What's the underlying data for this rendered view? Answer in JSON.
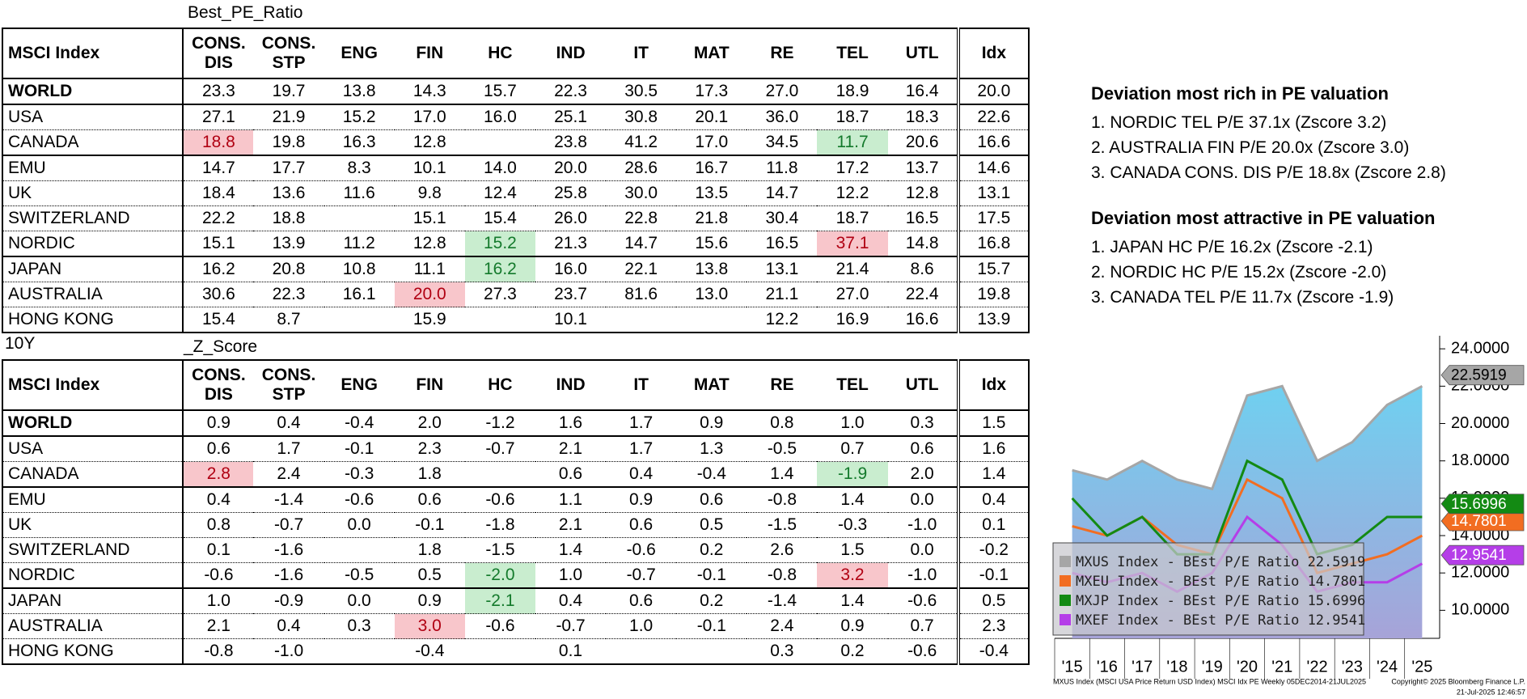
{
  "tables": [
    {
      "title": "Best_PE_Ratio",
      "columns": [
        "MSCI Index",
        "CONS.\nDIS",
        "CONS.\nSTP",
        "ENG",
        "FIN",
        "HC",
        "IND",
        "IT",
        "MAT",
        "RE",
        "TEL",
        "UTL",
        "Idx"
      ],
      "rows": [
        {
          "name": "WORLD",
          "values": [
            "23.3",
            "19.7",
            "13.8",
            "14.3",
            "15.7",
            "22.3",
            "30.5",
            "17.3",
            "27.0",
            "18.9",
            "16.4",
            "20.0"
          ]
        },
        {
          "name": "USA",
          "values": [
            "27.1",
            "21.9",
            "15.2",
            "17.0",
            "16.0",
            "25.1",
            "30.8",
            "20.1",
            "36.0",
            "18.7",
            "18.3",
            "22.6"
          ]
        },
        {
          "name": "CANADA",
          "values": [
            "18.8",
            "19.8",
            "16.3",
            "12.8",
            null,
            "23.8",
            "41.2",
            "17.0",
            "34.5",
            "11.7",
            "20.6",
            "16.6"
          ]
        },
        {
          "name": "EMU",
          "values": [
            "14.7",
            "17.7",
            "8.3",
            "10.1",
            "14.0",
            "20.0",
            "28.6",
            "16.7",
            "11.8",
            "17.2",
            "13.7",
            "14.6"
          ]
        },
        {
          "name": "UK",
          "values": [
            "18.4",
            "13.6",
            "11.6",
            "9.8",
            "12.4",
            "25.8",
            "30.0",
            "13.5",
            "14.7",
            "12.2",
            "12.8",
            "13.1"
          ]
        },
        {
          "name": "SWITZERLAND",
          "values": [
            "22.2",
            "18.8",
            null,
            "15.1",
            "15.4",
            "26.0",
            "22.8",
            "21.8",
            "30.4",
            "18.7",
            "16.5",
            "17.5"
          ]
        },
        {
          "name": "NORDIC",
          "values": [
            "15.1",
            "13.9",
            "11.2",
            "12.8",
            "15.2",
            "21.3",
            "14.7",
            "15.6",
            "16.5",
            "37.1",
            "14.8",
            "16.8"
          ]
        },
        {
          "name": "JAPAN",
          "values": [
            "16.2",
            "20.8",
            "10.8",
            "11.1",
            "16.2",
            "16.0",
            "22.1",
            "13.8",
            "13.1",
            "21.4",
            "8.6",
            "15.7"
          ]
        },
        {
          "name": "AUSTRALIA",
          "values": [
            "30.6",
            "22.3",
            "16.1",
            "20.0",
            "27.3",
            "23.7",
            "81.6",
            "13.0",
            "21.1",
            "27.0",
            "22.4",
            "19.8"
          ]
        },
        {
          "name": "HONG KONG",
          "values": [
            "15.4",
            "8.7",
            null,
            "15.9",
            null,
            "10.1",
            null,
            null,
            "12.2",
            "16.9",
            "16.6",
            "13.9"
          ]
        }
      ],
      "highlights": [
        {
          "row": 2,
          "col": 0,
          "color": "red"
        },
        {
          "row": 2,
          "col": 9,
          "color": "green"
        },
        {
          "row": 6,
          "col": 4,
          "color": "green"
        },
        {
          "row": 6,
          "col": 9,
          "color": "red"
        },
        {
          "row": 7,
          "col": 4,
          "color": "green"
        },
        {
          "row": 8,
          "col": 3,
          "color": "red"
        }
      ]
    },
    {
      "label": "10Y",
      "title": "_Z_Score",
      "columns": [
        "MSCI Index",
        "CONS.\nDIS",
        "CONS.\nSTP",
        "ENG",
        "FIN",
        "HC",
        "IND",
        "IT",
        "MAT",
        "RE",
        "TEL",
        "UTL",
        "Idx"
      ],
      "rows": [
        {
          "name": "WORLD",
          "values": [
            "0.9",
            "0.4",
            "-0.4",
            "2.0",
            "-1.2",
            "1.6",
            "1.7",
            "0.9",
            "0.8",
            "1.0",
            "0.3",
            "1.5"
          ]
        },
        {
          "name": "USA",
          "values": [
            "0.6",
            "1.7",
            "-0.1",
            "2.3",
            "-0.7",
            "2.1",
            "1.7",
            "1.3",
            "-0.5",
            "0.7",
            "0.6",
            "1.6"
          ]
        },
        {
          "name": "CANADA",
          "values": [
            "2.8",
            "2.4",
            "-0.3",
            "1.8",
            null,
            "0.6",
            "0.4",
            "-0.4",
            "1.4",
            "-1.9",
            "2.0",
            "1.4"
          ]
        },
        {
          "name": "EMU",
          "values": [
            "0.4",
            "-1.4",
            "-0.6",
            "0.6",
            "-0.6",
            "1.1",
            "0.9",
            "0.6",
            "-0.8",
            "1.4",
            "0.0",
            "0.4"
          ]
        },
        {
          "name": "UK",
          "values": [
            "0.8",
            "-0.7",
            "0.0",
            "-0.1",
            "-1.8",
            "2.1",
            "0.6",
            "0.5",
            "-1.5",
            "-0.3",
            "-1.0",
            "0.1"
          ]
        },
        {
          "name": "SWITZERLAND",
          "values": [
            "0.1",
            "-1.6",
            null,
            "1.8",
            "-1.5",
            "1.4",
            "-0.6",
            "0.2",
            "2.6",
            "1.5",
            "0.0",
            "-0.2"
          ]
        },
        {
          "name": "NORDIC",
          "values": [
            "-0.6",
            "-1.6",
            "-0.5",
            "0.5",
            "-2.0",
            "1.0",
            "-0.7",
            "-0.1",
            "-0.8",
            "3.2",
            "-1.0",
            "-0.1"
          ]
        },
        {
          "name": "JAPAN",
          "values": [
            "1.0",
            "-0.9",
            "0.0",
            "0.9",
            "-2.1",
            "0.4",
            "0.6",
            "0.2",
            "-1.4",
            "1.4",
            "-0.6",
            "0.5"
          ]
        },
        {
          "name": "AUSTRALIA",
          "values": [
            "2.1",
            "0.4",
            "0.3",
            "3.0",
            "-0.6",
            "-0.7",
            "1.0",
            "-0.1",
            "2.4",
            "0.9",
            "0.7",
            "2.3"
          ]
        },
        {
          "name": "HONG KONG",
          "values": [
            "-0.8",
            "-1.0",
            null,
            "-0.4",
            null,
            "0.1",
            null,
            null,
            "0.3",
            "0.2",
            "-0.6",
            "-0.4"
          ]
        }
      ],
      "highlights": [
        {
          "row": 2,
          "col": 0,
          "color": "red"
        },
        {
          "row": 2,
          "col": 9,
          "color": "green"
        },
        {
          "row": 6,
          "col": 4,
          "color": "green"
        },
        {
          "row": 6,
          "col": 9,
          "color": "red"
        },
        {
          "row": 7,
          "col": 4,
          "color": "green"
        },
        {
          "row": 8,
          "col": 3,
          "color": "red"
        }
      ]
    }
  ],
  "panels": [
    {
      "heading": "Deviation most rich in PE valuation",
      "items": [
        "1. NORDIC  TEL P/E 37.1x (Zscore 3.2)",
        "2. AUSTRALIA  FIN P/E 20.0x (Zscore 3.0)",
        "3. CANADA  CONS. DIS P/E 18.8x (Zscore 2.8)"
      ]
    },
    {
      "heading": "Deviation most attractive in PE valuation",
      "items": [
        "1. JAPAN  HC P/E 16.2x (Zscore -2.1)",
        "2. NORDIC  HC P/E 15.2x (Zscore -2.0)",
        "3. CANADA  TEL P/E 11.7x (Zscore -1.9)"
      ]
    }
  ],
  "chart_data": {
    "type": "line",
    "categories": [
      "'15",
      "'16",
      "'17",
      "'18",
      "'19",
      "'20",
      "'21",
      "'22",
      "'23",
      "'24",
      "'25"
    ],
    "series": [
      {
        "name": "MXUS Index - BEst P/E Ratio 22.5919",
        "color": "#a6a6a6",
        "last_value": 22.5919,
        "area": true,
        "values": [
          17.5,
          17,
          18,
          17,
          16.5,
          21.5,
          22,
          18,
          19,
          21,
          22
        ]
      },
      {
        "name": "MXEU Index - BEst P/E Ratio 14.7801",
        "color": "#f26d21",
        "last_value": 14.7801,
        "values": [
          14.5,
          14,
          15,
          13.5,
          13,
          17,
          16,
          12,
          12.5,
          13,
          14
        ]
      },
      {
        "name": "MXJP Index - BEst P/E Ratio 15.6996",
        "color": "#138a13",
        "last_value": 15.6996,
        "values": [
          16,
          14,
          15,
          13,
          13,
          18,
          17,
          13,
          13.5,
          15,
          15
        ]
      },
      {
        "name": "MXEF Index - BEst P/E Ratio 12.9541",
        "color": "#b53ee8",
        "last_value": 12.9541,
        "values": [
          12,
          11.5,
          12,
          11,
          12,
          15,
          13.5,
          11,
          11.5,
          11.5,
          12.5
        ]
      }
    ],
    "ylim": [
      8.5,
      24.7
    ],
    "yticks": [
      {
        "value": 10,
        "label": "10.0000"
      },
      {
        "value": 12,
        "label": "12.0000"
      },
      {
        "value": 14,
        "label": "14.0000"
      },
      {
        "value": 16,
        "label": "16.0000"
      },
      {
        "value": 18,
        "label": "18.0000"
      },
      {
        "value": 20,
        "label": "20.0000"
      },
      {
        "value": 22,
        "label": "22.0000"
      },
      {
        "value": 24,
        "label": "24.0000"
      }
    ],
    "grid": false,
    "legend": "lower-left",
    "source": "MXUS Index (MSCI USA Price Return USD Index) MSCI Idx PE  Weekly 05DEC2014-21JUL2025",
    "copyright": "Copyright© 2025 Bloomberg Finance L.P.",
    "timestamp": "21-Jul-2025 12:46:57"
  }
}
